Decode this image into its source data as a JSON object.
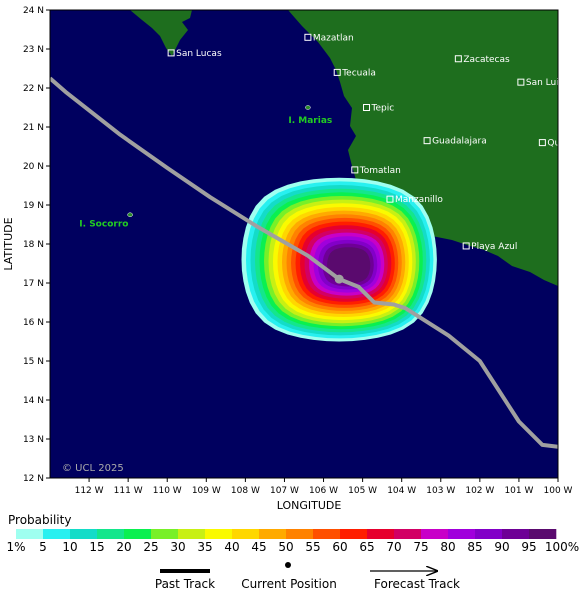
{
  "map": {
    "colors": {
      "ocean": "#00005f",
      "land": "#1e6e1e",
      "track": "#a0a0a0",
      "town_label": "#ffffff",
      "island_label": "#22cc22"
    },
    "lat_range": [
      12,
      24
    ],
    "lon_range": [
      -113,
      -100
    ],
    "lat_ticks": [
      {
        "value": 12,
        "label": "12 N"
      },
      {
        "value": 13,
        "label": "13 N"
      },
      {
        "value": 14,
        "label": "14 N"
      },
      {
        "value": 15,
        "label": "15 N"
      },
      {
        "value": 16,
        "label": "16 N"
      },
      {
        "value": 17,
        "label": "17 N"
      },
      {
        "value": 18,
        "label": "18 N"
      },
      {
        "value": 19,
        "label": "19 N"
      },
      {
        "value": 20,
        "label": "20 N"
      },
      {
        "value": 21,
        "label": "21 N"
      },
      {
        "value": 22,
        "label": "22 N"
      },
      {
        "value": 23,
        "label": "23 N"
      },
      {
        "value": 24,
        "label": "24 N"
      }
    ],
    "lon_ticks": [
      {
        "value": -112,
        "label": "112 W"
      },
      {
        "value": -111,
        "label": "111 W"
      },
      {
        "value": -110,
        "label": "110 W"
      },
      {
        "value": -109,
        "label": "109 W"
      },
      {
        "value": -108,
        "label": "108 W"
      },
      {
        "value": -107,
        "label": "107 W"
      },
      {
        "value": -106,
        "label": "106 W"
      },
      {
        "value": -105,
        "label": "105 W"
      },
      {
        "value": -104,
        "label": "104 W"
      },
      {
        "value": -103,
        "label": "103 W"
      },
      {
        "value": -102,
        "label": "102 W"
      },
      {
        "value": -101,
        "label": "101 W"
      },
      {
        "value": -100,
        "label": "100 W"
      }
    ],
    "xlabel": "LONGITUDE",
    "ylabel": "LATITUDE",
    "copyright": "© UCL 2025",
    "towns": [
      {
        "name": "San Lucas",
        "lon": -109.9,
        "lat": 22.9
      },
      {
        "name": "Mazatlan",
        "lon": -106.4,
        "lat": 23.3
      },
      {
        "name": "Tecuala",
        "lon": -105.65,
        "lat": 22.4
      },
      {
        "name": "Zacatecas",
        "lon": -102.55,
        "lat": 22.75
      },
      {
        "name": "San Luis Potosi",
        "lon": -100.95,
        "lat": 22.15
      },
      {
        "name": "Tepic",
        "lon": -104.9,
        "lat": 21.5
      },
      {
        "name": "Guadalajara",
        "lon": -103.35,
        "lat": 20.65
      },
      {
        "name": "Queretaro",
        "lon": -100.4,
        "lat": 20.6
      },
      {
        "name": "Tomatlan",
        "lon": -105.2,
        "lat": 19.9
      },
      {
        "name": "Manzanillo",
        "lon": -104.3,
        "lat": 19.15
      },
      {
        "name": "Playa Azul",
        "lon": -102.35,
        "lat": 17.95
      }
    ],
    "islands": [
      {
        "name": "I. Marias",
        "lon": -106.4,
        "lat": 21.5,
        "label_lon": -106.9,
        "label_lat": 21.1
      },
      {
        "name": "I. Socorro",
        "lon": -110.95,
        "lat": 18.75,
        "label_lon": -112.25,
        "label_lat": 18.45
      }
    ],
    "track": [
      [
        -113,
        22.25
      ],
      [
        -112.6,
        21.9
      ],
      [
        -111.2,
        20.8
      ],
      [
        -110,
        19.95
      ],
      [
        -108.9,
        19.2
      ],
      [
        -107.7,
        18.45
      ],
      [
        -106.4,
        17.7
      ],
      [
        -105.6,
        17.1
      ],
      [
        -105.1,
        16.9
      ],
      [
        -104.7,
        16.5
      ],
      [
        -104.2,
        16.45
      ],
      [
        -103.9,
        16.35
      ],
      [
        -102.8,
        15.65
      ],
      [
        -102.0,
        15.0
      ],
      [
        -101.0,
        13.45
      ],
      [
        -100.4,
        12.85
      ],
      [
        -100,
        12.8
      ]
    ],
    "current_position": {
      "lon": -105.6,
      "lat": 17.1
    },
    "probability_field": {
      "center": {
        "lon": -105.6,
        "lat": 17.6
      },
      "outer_radius_lon": 2.5,
      "outer_radius_lat": 2.1
    }
  },
  "legend": {
    "title": "Probability",
    "bins": [
      {
        "label": "1%",
        "color": "#9ffff0"
      },
      {
        "label": "5",
        "color": "#28f0f0"
      },
      {
        "label": "10",
        "color": "#14dcc8"
      },
      {
        "label": "15",
        "color": "#14e68c"
      },
      {
        "label": "20",
        "color": "#0af050"
      },
      {
        "label": "25",
        "color": "#78f028"
      },
      {
        "label": "30",
        "color": "#c8f014"
      },
      {
        "label": "35",
        "color": "#fafa00"
      },
      {
        "label": "40",
        "color": "#ffd700"
      },
      {
        "label": "45",
        "color": "#ffaa00"
      },
      {
        "label": "50",
        "color": "#ff8200"
      },
      {
        "label": "55",
        "color": "#ff5000"
      },
      {
        "label": "60",
        "color": "#ff1e00"
      },
      {
        "label": "65",
        "color": "#e6002d"
      },
      {
        "label": "70",
        "color": "#d20064"
      },
      {
        "label": "75",
        "color": "#c800c8"
      },
      {
        "label": "80",
        "color": "#a000dc"
      },
      {
        "label": "85",
        "color": "#8200c8"
      },
      {
        "label": "90",
        "color": "#6e0096"
      },
      {
        "label": "95",
        "color": "#5a0a6e"
      }
    ],
    "end_label": "100%",
    "past_track_label": "Past Track",
    "current_position_label": "Current Position",
    "forecast_track_label": "Forecast Track"
  }
}
